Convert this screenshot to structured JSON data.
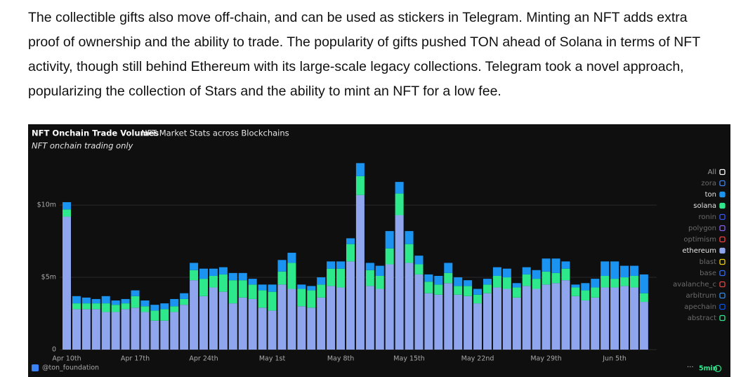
{
  "paragraph_lines": [
    "The collectible gifts also move off-chain, and can be used as stickers in Telegram. Minting an NFT adds extra",
    "proof of ownership and the ability to trade. The popularity of gifts pushed TON ahead of Solana in terms of NFT",
    "activity, though still behind Ethereum with its large-scale legacy collections. Telegram took a novel approach,",
    "popularizing the collection of Stars and the ability to mint an NFT for a low fee."
  ],
  "chart_data": {
    "type": "bar",
    "stacked": true,
    "title": "NFT Onchain Trade Volumes",
    "subtitle": "NFT Market Stats across Blockchains",
    "note": "NFT onchain trading only",
    "source": "@ton_foundation",
    "refresh": "5min",
    "categories": [
      "Apr 10th",
      null,
      null,
      null,
      null,
      null,
      null,
      "Apr 17th",
      null,
      null,
      null,
      null,
      null,
      null,
      "Apr 24th",
      null,
      null,
      null,
      null,
      null,
      null,
      "May 1st",
      null,
      null,
      null,
      null,
      null,
      null,
      "May 8th",
      null,
      null,
      null,
      null,
      null,
      null,
      "May 15th",
      null,
      null,
      null,
      null,
      null,
      null,
      "May 22nd",
      null,
      null,
      null,
      null,
      null,
      null,
      "May 29th",
      null,
      null,
      null,
      null,
      null,
      null,
      "Jun 5th",
      null,
      null,
      null
    ],
    "ylim": [
      0,
      13.5
    ],
    "yticks": [
      0,
      {
        "value": 5,
        "label": "$5m"
      },
      {
        "value": 10,
        "label": "$10m"
      }
    ],
    "grid": true,
    "legend_all": {
      "name": "All",
      "color": "#ffffff"
    },
    "series": [
      {
        "name": "zora",
        "color": "#3b82f6"
      },
      {
        "name": "ton",
        "color": "#1a94f0",
        "values": [
          0.5,
          0.5,
          0.4,
          0.3,
          0.5,
          0.3,
          0.3,
          0.4,
          0.4,
          0.4,
          0.4,
          0.5,
          0.4,
          0.5,
          0.7,
          0.5,
          0.5,
          0.5,
          0.5,
          0.4,
          0.4,
          0.5,
          0.8,
          0.7,
          0.3,
          0.3,
          0.5,
          0.5,
          0.5,
          0.4,
          0.9,
          0.5,
          0.7,
          1.2,
          0.8,
          0.9,
          0.6,
          0.5,
          0.6,
          0.7,
          0.6,
          0.4,
          0.4,
          0.4,
          0.6,
          0.6,
          0.3,
          0.5,
          0.6,
          0.9,
          1.0,
          0.5,
          0.2,
          0.5,
          0.6,
          1.0,
          1.2,
          0.8,
          0.7,
          1.3
        ]
      },
      {
        "name": "solana",
        "color": "#2ee88c",
        "values": [
          0.5,
          0.4,
          0.4,
          0.4,
          0.6,
          0.5,
          0.4,
          0.8,
          0.4,
          0.7,
          0.8,
          0.4,
          0.4,
          0.7,
          1.2,
          0.8,
          1.2,
          1.6,
          1.2,
          1.0,
          1.2,
          1.3,
          0.9,
          1.8,
          1.2,
          1.2,
          0.9,
          1.2,
          1.3,
          1.2,
          1.3,
          1.1,
          0.9,
          1.1,
          1.5,
          1.3,
          0.7,
          0.8,
          0.7,
          0.7,
          0.6,
          0.7,
          0.6,
          0.6,
          0.8,
          0.8,
          0.7,
          0.8,
          0.7,
          0.9,
          0.7,
          0.8,
          0.6,
          0.7,
          0.7,
          0.8,
          0.6,
          0.6,
          0.8,
          0.6
        ]
      },
      {
        "name": "ronin",
        "color": "#3355ff"
      },
      {
        "name": "polygon",
        "color": "#8b5cf6"
      },
      {
        "name": "optimism",
        "color": "#ff3b3b"
      },
      {
        "name": "ethereum",
        "color": "#8fa6ee",
        "values": [
          9.2,
          2.8,
          2.8,
          2.8,
          2.6,
          2.6,
          2.8,
          2.9,
          2.6,
          2.0,
          2.0,
          2.6,
          3.1,
          4.8,
          3.7,
          4.3,
          4.0,
          3.2,
          3.6,
          3.5,
          2.9,
          2.7,
          4.5,
          4.2,
          3.0,
          2.9,
          3.6,
          4.4,
          4.3,
          6.1,
          10.7,
          4.4,
          4.2,
          5.9,
          9.3,
          6.0,
          5.2,
          3.9,
          3.8,
          4.6,
          3.8,
          3.7,
          3.2,
          3.9,
          4.3,
          4.2,
          3.6,
          4.4,
          4.2,
          4.5,
          4.6,
          4.8,
          3.7,
          3.4,
          3.6,
          4.3,
          4.3,
          4.4,
          4.3,
          3.3
        ]
      },
      {
        "name": "blast",
        "color": "#f5d100"
      },
      {
        "name": "base",
        "color": "#2f6bff"
      },
      {
        "name": "avalanche_c",
        "color": "#e84142"
      },
      {
        "name": "arbitrum",
        "color": "#2d8cf0"
      },
      {
        "name": "apechain",
        "color": "#0054fa"
      },
      {
        "name": "abstract",
        "color": "#2ee88c"
      }
    ]
  }
}
